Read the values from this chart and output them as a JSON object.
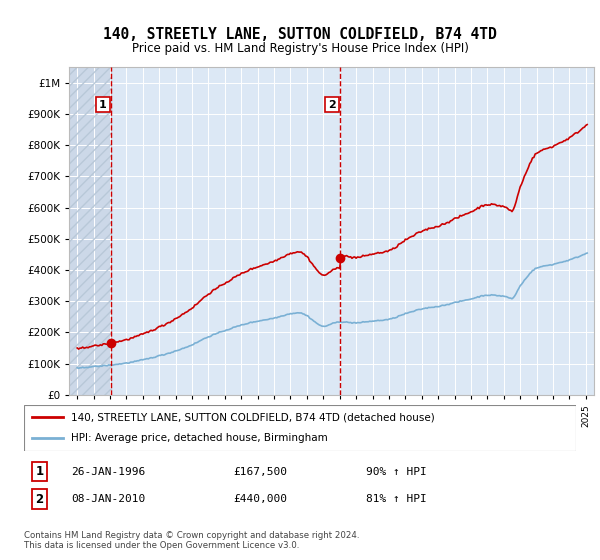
{
  "title": "140, STREETLY LANE, SUTTON COLDFIELD, B74 4TD",
  "subtitle": "Price paid vs. HM Land Registry's House Price Index (HPI)",
  "legend_label_red": "140, STREETLY LANE, SUTTON COLDFIELD, B74 4TD (detached house)",
  "legend_label_blue": "HPI: Average price, detached house, Birmingham",
  "footer": "Contains HM Land Registry data © Crown copyright and database right 2024.\nThis data is licensed under the Open Government Licence v3.0.",
  "transaction1_price": 167500,
  "transaction1_x": 1996.07,
  "transaction2_price": 440000,
  "transaction2_x": 2010.03,
  "red_color": "#cc0000",
  "blue_color": "#7ab0d4",
  "plot_bg_color": "#dce8f5",
  "hatch_bg_color": "#ccd8e8",
  "grid_color": "#ffffff",
  "border_color": "#aaaaaa"
}
